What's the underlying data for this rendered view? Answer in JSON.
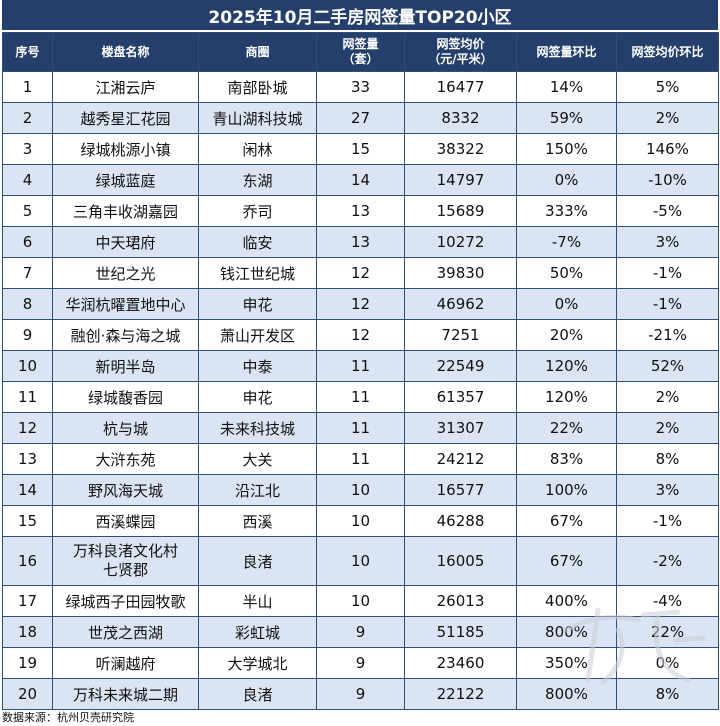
{
  "title": "2025年10月二手房网签量TOP20小区",
  "headers": {
    "rank": "序号",
    "name": "楼盘名称",
    "area": "商圈",
    "count_line1": "网签量",
    "count_line2": "（套）",
    "price_line1": "网签均价",
    "price_line2": "（元/平米）",
    "count_mom": "网签量环比",
    "price_mom": "网签均价环比"
  },
  "rows": [
    {
      "rank": "1",
      "name": "江湘云庐",
      "area": "南部卧城",
      "count": "33",
      "price": "16477",
      "count_mom": "14%",
      "price_mom": "5%"
    },
    {
      "rank": "2",
      "name": "越秀星汇花园",
      "area": "青山湖科技城",
      "count": "27",
      "price": "8332",
      "count_mom": "59%",
      "price_mom": "2%"
    },
    {
      "rank": "3",
      "name": "绿城桃源小镇",
      "area": "闲林",
      "count": "15",
      "price": "38322",
      "count_mom": "150%",
      "price_mom": "146%"
    },
    {
      "rank": "4",
      "name": "绿城蓝庭",
      "area": "东湖",
      "count": "14",
      "price": "14797",
      "count_mom": "0%",
      "price_mom": "-10%"
    },
    {
      "rank": "5",
      "name": "三角丰收湖嘉园",
      "area": "乔司",
      "count": "13",
      "price": "15689",
      "count_mom": "333%",
      "price_mom": "-5%"
    },
    {
      "rank": "6",
      "name": "中天珺府",
      "area": "临安",
      "count": "13",
      "price": "10272",
      "count_mom": "-7%",
      "price_mom": "3%"
    },
    {
      "rank": "7",
      "name": "世纪之光",
      "area": "钱江世纪城",
      "count": "12",
      "price": "39830",
      "count_mom": "50%",
      "price_mom": "-1%"
    },
    {
      "rank": "8",
      "name": "华润杭曜置地中心",
      "area": "申花",
      "count": "12",
      "price": "46962",
      "count_mom": "0%",
      "price_mom": "-1%"
    },
    {
      "rank": "9",
      "name": "融创·森与海之城",
      "area": "萧山开发区",
      "count": "12",
      "price": "7251",
      "count_mom": "20%",
      "price_mom": "-21%"
    },
    {
      "rank": "10",
      "name": "新明半岛",
      "area": "中泰",
      "count": "11",
      "price": "22549",
      "count_mom": "120%",
      "price_mom": "52%"
    },
    {
      "rank": "11",
      "name": "绿城馥香园",
      "area": "申花",
      "count": "11",
      "price": "61357",
      "count_mom": "120%",
      "price_mom": "2%"
    },
    {
      "rank": "12",
      "name": "杭与城",
      "area": "未来科技城",
      "count": "11",
      "price": "31307",
      "count_mom": "22%",
      "price_mom": "2%"
    },
    {
      "rank": "13",
      "name": "大浒东苑",
      "area": "大关",
      "count": "11",
      "price": "24212",
      "count_mom": "83%",
      "price_mom": "8%"
    },
    {
      "rank": "14",
      "name": "野风海天城",
      "area": "沿江北",
      "count": "10",
      "price": "16577",
      "count_mom": "100%",
      "price_mom": "3%"
    },
    {
      "rank": "15",
      "name": "西溪蝶园",
      "area": "西溪",
      "count": "10",
      "price": "46288",
      "count_mom": "67%",
      "price_mom": "-1%"
    },
    {
      "rank": "16",
      "name_line1": "万科良渚文化村",
      "name_line2": "七贤郡",
      "area": "良渚",
      "count": "10",
      "price": "16005",
      "count_mom": "67%",
      "price_mom": "-2%"
    },
    {
      "rank": "17",
      "name": "绿城西子田园牧歌",
      "area": "半山",
      "count": "10",
      "price": "26013",
      "count_mom": "400%",
      "price_mom": "-4%"
    },
    {
      "rank": "18",
      "name": "世茂之西湖",
      "area": "彩虹城",
      "count": "9",
      "price": "51185",
      "count_mom": "800%",
      "price_mom": "22%"
    },
    {
      "rank": "19",
      "name": "听澜越府",
      "area": "大学城北",
      "count": "9",
      "price": "23460",
      "count_mom": "350%",
      "price_mom": "0%"
    },
    {
      "rank": "20",
      "name": "万科未来城二期",
      "area": "良渚",
      "count": "9",
      "price": "22122",
      "count_mom": "800%",
      "price_mom": "8%"
    }
  ],
  "source": "数据来源：杭州贝壳研究院",
  "colors": {
    "header_bg": "#243f6b",
    "alt_row_bg": "#dbe4f2",
    "border": "#2f4f7a"
  }
}
